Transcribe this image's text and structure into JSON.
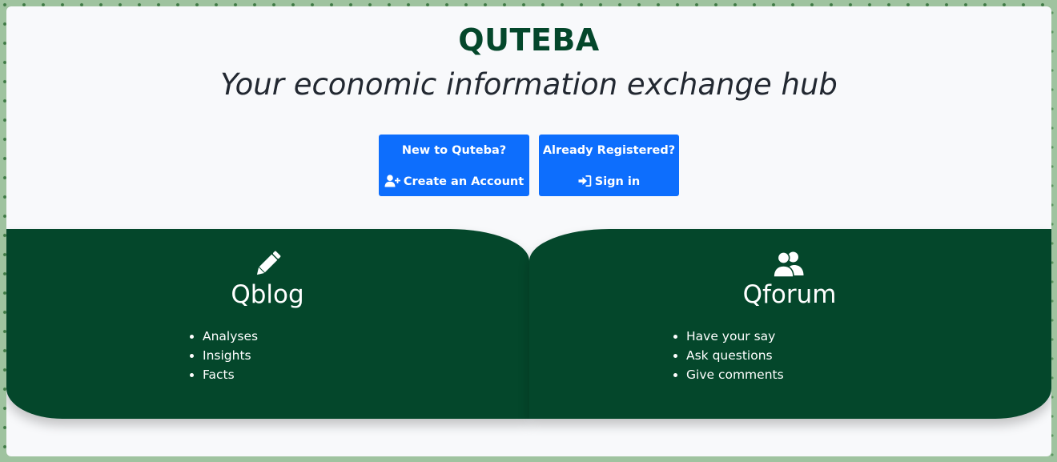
{
  "hero": {
    "brand": "QUTEBA",
    "tagline": "Your economic information exchange hub"
  },
  "actions": {
    "create": {
      "prompt": "New to Quteba?",
      "label": "Create an Account",
      "icon": "user-plus-icon"
    },
    "signin": {
      "prompt": "Already Registered?",
      "label": "Sign in",
      "icon": "sign-in-icon"
    }
  },
  "features": {
    "blog": {
      "title": "Qblog",
      "icon": "pencil-icon",
      "items": [
        "Analyses",
        "Insights",
        "Facts"
      ]
    },
    "forum": {
      "title": "Qforum",
      "icon": "users-icon",
      "items": [
        "Have your say",
        "Ask questions",
        "Give comments"
      ]
    }
  },
  "colors": {
    "brand": "#04472b",
    "primary": "#0d6efd",
    "page_background": "#f8f9fb"
  }
}
